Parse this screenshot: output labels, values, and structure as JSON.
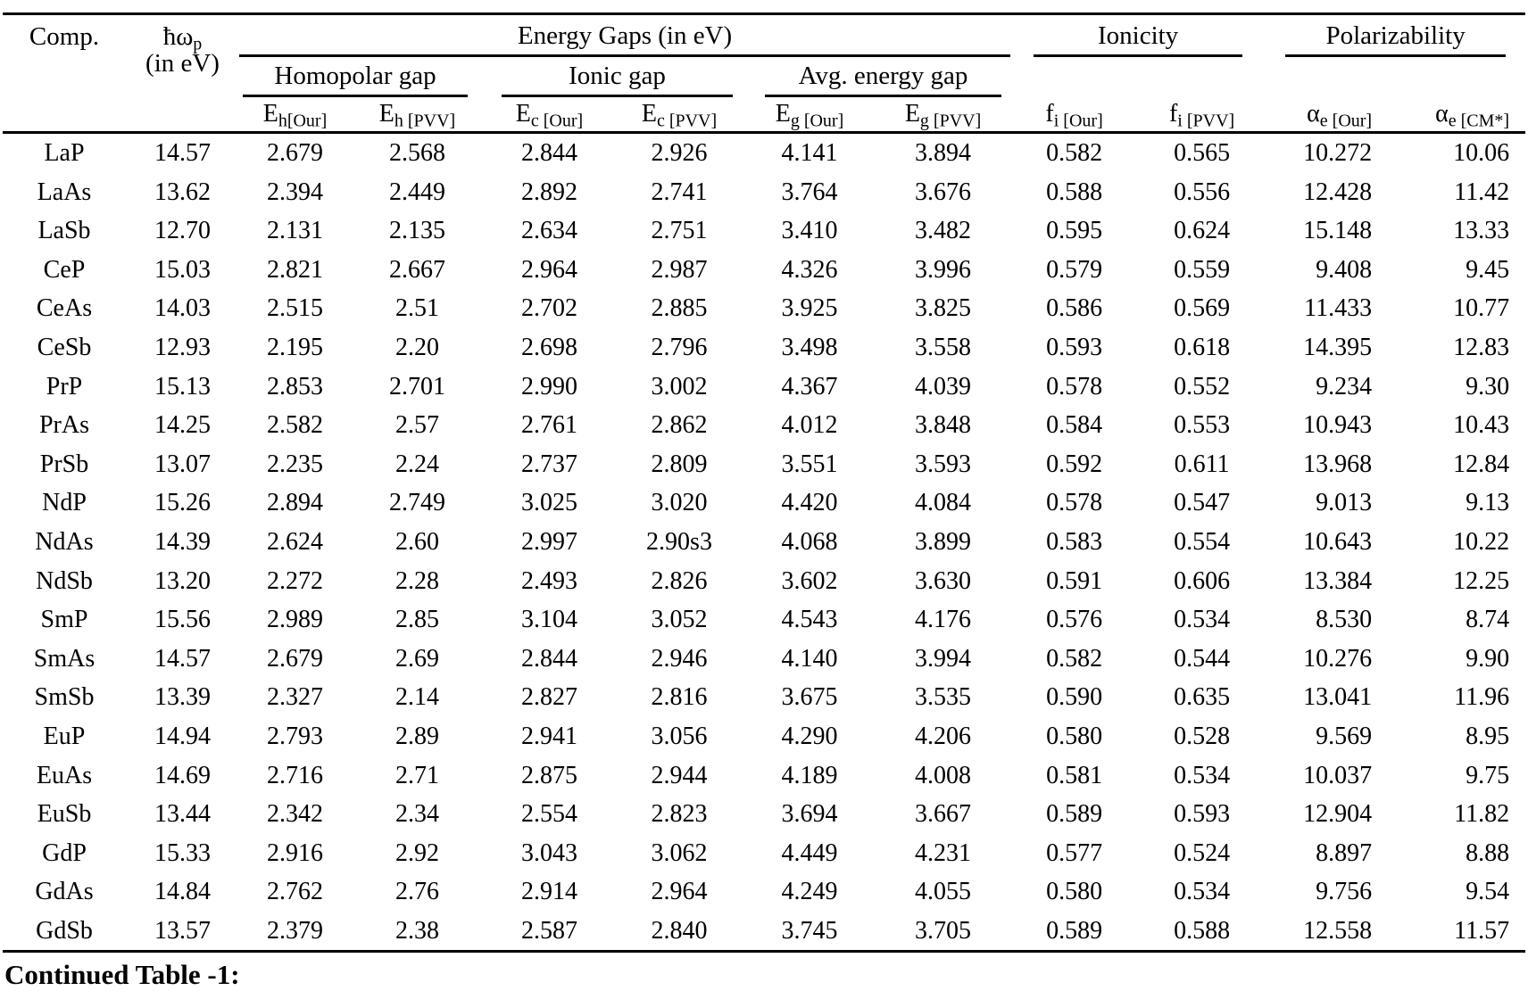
{
  "table": {
    "caption": "Continued Table -1:",
    "header": {
      "comp": "Comp.",
      "plasmon": {
        "base": "ħω",
        "sub": "p",
        "line2": "(in eV)"
      },
      "groups": {
        "energy_gaps": "Energy Gaps (in eV)",
        "ionicity": "Ionicity",
        "polarizability": "Polarizability"
      },
      "subgroups": {
        "homopolar": "Homopolar gap",
        "ionic": "Ionic gap",
        "avg": "Avg. energy gap"
      },
      "columns": [
        {
          "base": "E",
          "sub": "h[Our]"
        },
        {
          "base": "E",
          "sub": "h [PVV]"
        },
        {
          "base": "E",
          "sub": "c [Our]"
        },
        {
          "base": "E",
          "sub": "c [PVV]"
        },
        {
          "base": "E",
          "sub": "g [Our]"
        },
        {
          "base": "E",
          "sub": "g [PVV]"
        },
        {
          "base": "f",
          "sub": "i [Our]"
        },
        {
          "base": "f",
          "sub": "i [PVV]"
        },
        {
          "base": "α",
          "sub": "e [Our]"
        },
        {
          "base": "α",
          "sub": "e [CM*]"
        }
      ]
    },
    "rows": [
      [
        "LaP",
        "14.57",
        "2.679",
        "2.568",
        "2.844",
        "2.926",
        "4.141",
        "3.894",
        "0.582",
        "0.565",
        "10.272",
        "10.06"
      ],
      [
        "LaAs",
        "13.62",
        "2.394",
        "2.449",
        "2.892",
        "2.741",
        "3.764",
        "3.676",
        "0.588",
        "0.556",
        "12.428",
        "11.42"
      ],
      [
        "LaSb",
        "12.70",
        "2.131",
        "2.135",
        "2.634",
        "2.751",
        "3.410",
        "3.482",
        "0.595",
        "0.624",
        "15.148",
        "13.33"
      ],
      [
        "CeP",
        "15.03",
        "2.821",
        "2.667",
        "2.964",
        "2.987",
        "4.326",
        "3.996",
        "0.579",
        "0.559",
        "9.408",
        "9.45"
      ],
      [
        "CeAs",
        "14.03",
        "2.515",
        "2.51",
        "2.702",
        "2.885",
        "3.925",
        "3.825",
        "0.586",
        "0.569",
        "11.433",
        "10.77"
      ],
      [
        "CeSb",
        "12.93",
        "2.195",
        "2.20",
        "2.698",
        "2.796",
        "3.498",
        "3.558",
        "0.593",
        "0.618",
        "14.395",
        "12.83"
      ],
      [
        "PrP",
        "15.13",
        "2.853",
        "2.701",
        "2.990",
        "3.002",
        "4.367",
        "4.039",
        "0.578",
        "0.552",
        "9.234",
        "9.30"
      ],
      [
        "PrAs",
        "14.25",
        "2.582",
        "2.57",
        "2.761",
        "2.862",
        "4.012",
        "3.848",
        "0.584",
        "0.553",
        "10.943",
        "10.43"
      ],
      [
        "PrSb",
        "13.07",
        "2.235",
        "2.24",
        "2.737",
        "2.809",
        "3.551",
        "3.593",
        "0.592",
        "0.611",
        "13.968",
        "12.84"
      ],
      [
        "NdP",
        "15.26",
        "2.894",
        "2.749",
        "3.025",
        "3.020",
        "4.420",
        "4.084",
        "0.578",
        "0.547",
        "9.013",
        "9.13"
      ],
      [
        "NdAs",
        "14.39",
        "2.624",
        "2.60",
        "2.997",
        "2.90s3",
        "4.068",
        "3.899",
        "0.583",
        "0.554",
        "10.643",
        "10.22"
      ],
      [
        "NdSb",
        "13.20",
        "2.272",
        "2.28",
        "2.493",
        "2.826",
        "3.602",
        "3.630",
        "0.591",
        "0.606",
        "13.384",
        "12.25"
      ],
      [
        "SmP",
        "15.56",
        "2.989",
        "2.85",
        "3.104",
        "3.052",
        "4.543",
        "4.176",
        "0.576",
        "0.534",
        "8.530",
        "8.74"
      ],
      [
        "SmAs",
        "14.57",
        "2.679",
        "2.69",
        "2.844",
        "2.946",
        "4.140",
        "3.994",
        "0.582",
        "0.544",
        "10.276",
        "9.90"
      ],
      [
        "SmSb",
        "13.39",
        "2.327",
        "2.14",
        "2.827",
        "2.816",
        "3.675",
        "3.535",
        "0.590",
        "0.635",
        "13.041",
        "11.96"
      ],
      [
        "EuP",
        "14.94",
        "2.793",
        "2.89",
        "2.941",
        "3.056",
        "4.290",
        "4.206",
        "0.580",
        "0.528",
        "9.569",
        "8.95"
      ],
      [
        "EuAs",
        "14.69",
        "2.716",
        "2.71",
        "2.875",
        "2.944",
        "4.189",
        "4.008",
        "0.581",
        "0.534",
        "10.037",
        "9.75"
      ],
      [
        "EuSb",
        "13.44",
        "2.342",
        "2.34",
        "2.554",
        "2.823",
        "3.694",
        "3.667",
        "0.589",
        "0.593",
        "12.904",
        "11.82"
      ],
      [
        "GdP",
        "15.33",
        "2.916",
        "2.92",
        "3.043",
        "3.062",
        "4.449",
        "4.231",
        "0.577",
        "0.524",
        "8.897",
        "8.88"
      ],
      [
        "GdAs",
        "14.84",
        "2.762",
        "2.76",
        "2.914",
        "2.964",
        "4.249",
        "4.055",
        "0.580",
        "0.534",
        "9.756",
        "9.54"
      ],
      [
        "GdSb",
        "13.57",
        "2.379",
        "2.38",
        "2.587",
        "2.840",
        "3.745",
        "3.705",
        "0.589",
        "0.588",
        "12.558",
        "11.57"
      ]
    ]
  }
}
